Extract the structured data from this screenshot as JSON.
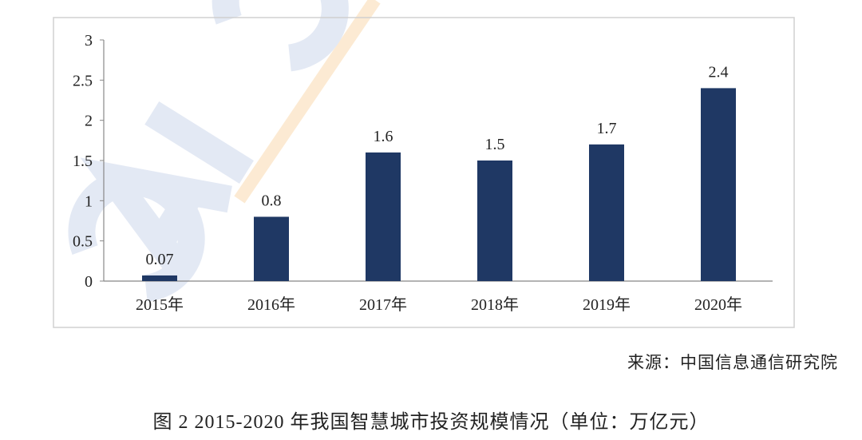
{
  "chart_data": {
    "type": "bar",
    "categories": [
      "2015年",
      "2016年",
      "2017年",
      "2018年",
      "2019年",
      "2020年"
    ],
    "values": [
      0.07,
      0.8,
      1.6,
      1.5,
      1.7,
      2.4
    ],
    "data_labels": [
      "0.07",
      "0.8",
      "1.6",
      "1.5",
      "1.7",
      "2.4"
    ],
    "yticks": [
      "0",
      "0.5",
      "1",
      "1.5",
      "2",
      "2.5",
      "3"
    ],
    "ylim": [
      0,
      3
    ],
    "grid": false,
    "bar_color": "#1f3864",
    "title": "",
    "xlabel": "",
    "ylabel": ""
  },
  "source": "来源：中国信息通信研究院",
  "caption": "图 2 2015-2020 年我国智慧城市投资规模情况（单位：万亿元）",
  "watermark": "CAICT"
}
